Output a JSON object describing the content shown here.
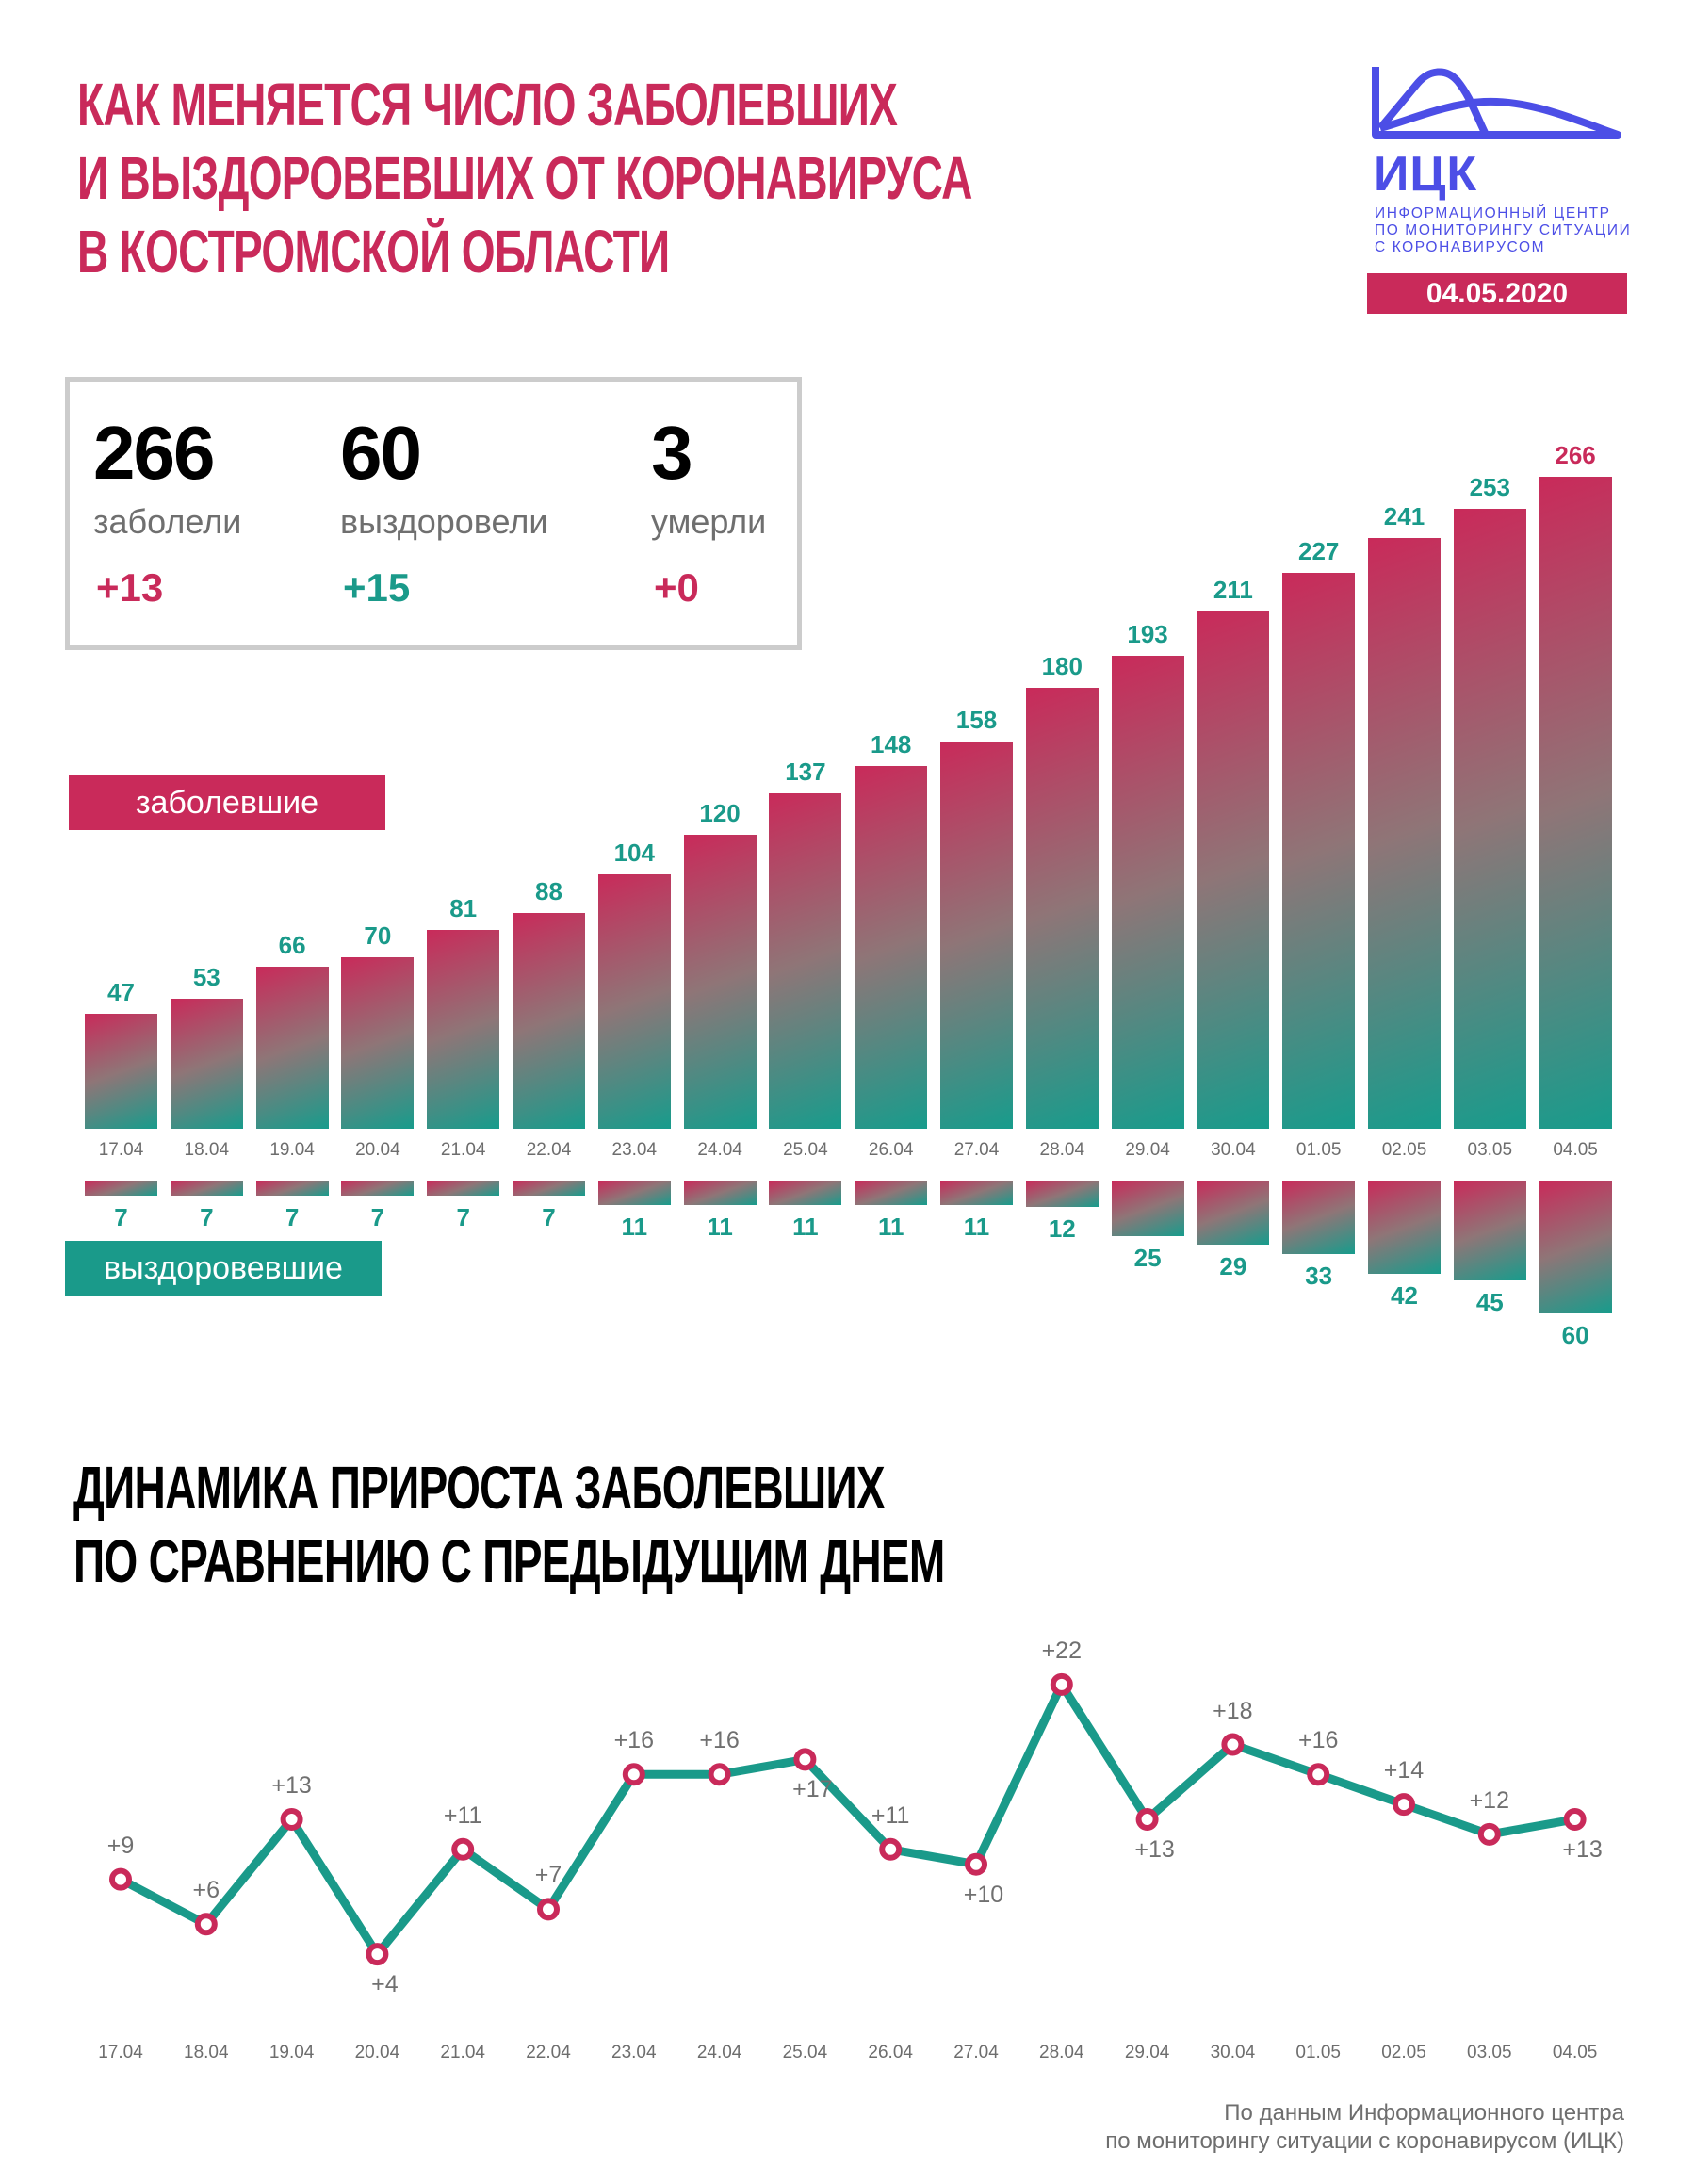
{
  "header": {
    "title_lines": [
      "КАК МЕНЯЕТСЯ ЧИСЛО ЗАБОЛЕВШИХ",
      "И ВЫЗДОРОВЕВШИХ ОТ КОРОНАВИРУСА",
      "В КОСТРОМСКОЙ ОБЛАСТИ"
    ],
    "logo_abbr": "ИЦК",
    "logo_sub_lines": [
      "Информационный центр",
      "по мониторингу ситуации",
      "с коронавирусом"
    ],
    "date": "04.05.2020"
  },
  "stats": [
    {
      "value": "266",
      "label": "заболели",
      "delta": "+13",
      "delta_color": "#c92a5a"
    },
    {
      "value": "60",
      "label": "выздоровели",
      "delta": "+15",
      "delta_color": "#1a9a8a"
    },
    {
      "value": "3",
      "label": "умерли",
      "delta": "+0",
      "delta_color": "#c92a5a"
    }
  ],
  "legend": {
    "infected": "заболевшие",
    "recovered": "выздоровевшие"
  },
  "colors": {
    "accent_pink": "#c92a5a",
    "accent_teal": "#1a9a8a",
    "logo_blue": "#4c4ee6",
    "gray_text": "#6d6d6d"
  },
  "section2": {
    "title_lines": [
      "ДИНАМИКА ПРИРОСТА ЗАБОЛЕВШИХ",
      "ПО СРАВНЕНИЮ С ПРЕДЫДУЩИМ ДНЕМ"
    ]
  },
  "footer": {
    "lines": [
      "По данным Информационного центра",
      "по мониторингу ситуации с коронавирусом (ИЦК)"
    ]
  },
  "chart_data": [
    {
      "type": "bar",
      "title": "Как меняется число заболевших и выздоровевших от коронавируса в Костромской области",
      "categories": [
        "17.04",
        "18.04",
        "19.04",
        "20.04",
        "21.04",
        "22.04",
        "23.04",
        "24.04",
        "25.04",
        "26.04",
        "27.04",
        "28.04",
        "29.04",
        "30.04",
        "01.05",
        "02.05",
        "03.05",
        "04.05"
      ],
      "series": [
        {
          "name": "заболевшие",
          "values": [
            47,
            53,
            66,
            70,
            81,
            88,
            104,
            120,
            137,
            148,
            158,
            180,
            193,
            211,
            227,
            241,
            253,
            266
          ]
        },
        {
          "name": "выздоровевшие",
          "values": [
            7,
            7,
            7,
            7,
            7,
            7,
            11,
            11,
            11,
            11,
            11,
            12,
            25,
            29,
            33,
            42,
            45,
            60
          ]
        }
      ],
      "xlabel": "",
      "ylabel": "",
      "grid": false,
      "legend_position": "left"
    },
    {
      "type": "line",
      "title": "Динамика прироста заболевших по сравнению с предыдущим днем",
      "categories": [
        "17.04",
        "18.04",
        "19.04",
        "20.04",
        "21.04",
        "22.04",
        "23.04",
        "24.04",
        "25.04",
        "26.04",
        "27.04",
        "28.04",
        "29.04",
        "30.04",
        "01.05",
        "02.05",
        "03.05",
        "04.05"
      ],
      "values": [
        9,
        6,
        13,
        4,
        11,
        7,
        16,
        16,
        17,
        11,
        10,
        22,
        13,
        18,
        16,
        14,
        12,
        13
      ],
      "labels": [
        "+9",
        "+6",
        "+13",
        "+4",
        "+11",
        "+7",
        "+16",
        "+16",
        "+17",
        "+11",
        "+10",
        "+22",
        "+13",
        "+18",
        "+16",
        "+14",
        "+12",
        "+13"
      ],
      "label_below": [
        false,
        false,
        false,
        true,
        false,
        false,
        false,
        false,
        true,
        false,
        true,
        false,
        true,
        false,
        false,
        false,
        false,
        true
      ],
      "xlabel": "",
      "ylabel": "",
      "grid": false
    }
  ]
}
